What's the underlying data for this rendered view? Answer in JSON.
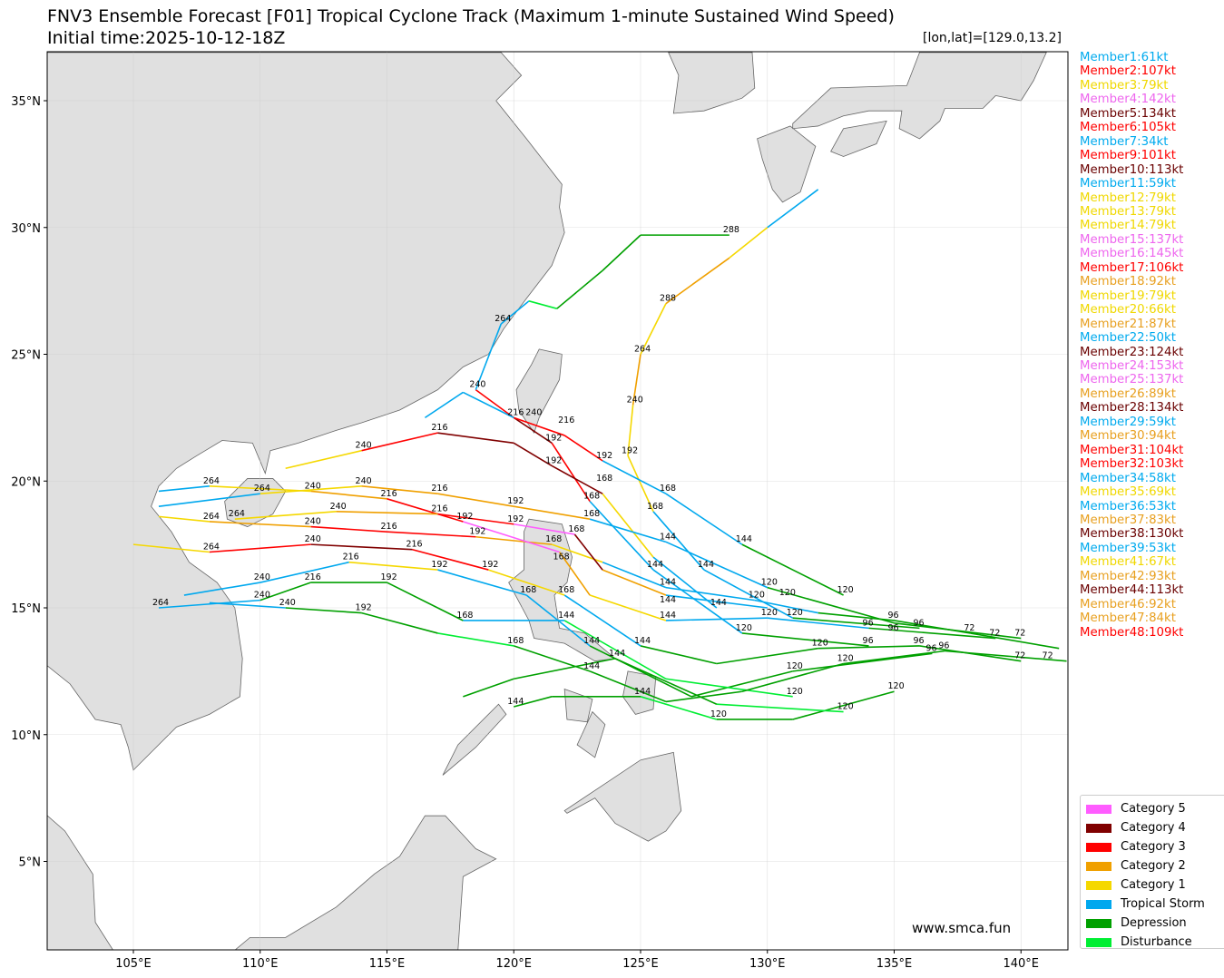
{
  "title": "FNV3 Ensemble Forecast [F01] Tropical Cyclone Track (Maximum 1-minute Sustained Wind Speed)",
  "subtitle": "Initial time:2025-10-12-18Z",
  "coord_readout": "[lon,lat]=[129.0,13.2]",
  "watermark": "www.smca.fun",
  "members": [
    {
      "label": "Member1:61kt",
      "cat": "TS"
    },
    {
      "label": "Member2:107kt",
      "cat": "C3"
    },
    {
      "label": "Member3:79kt",
      "cat": "C1"
    },
    {
      "label": "Member4:142kt",
      "cat": "C5"
    },
    {
      "label": "Member5:134kt",
      "cat": "C4"
    },
    {
      "label": "Member6:105kt",
      "cat": "C3"
    },
    {
      "label": "Member7:34kt",
      "cat": "TS"
    },
    {
      "label": "Member9:101kt",
      "cat": "C3"
    },
    {
      "label": "Member10:113kt",
      "cat": "C4"
    },
    {
      "label": "Member11:59kt",
      "cat": "TS"
    },
    {
      "label": "Member12:79kt",
      "cat": "C1"
    },
    {
      "label": "Member13:79kt",
      "cat": "C1"
    },
    {
      "label": "Member14:79kt",
      "cat": "C1"
    },
    {
      "label": "Member15:137kt",
      "cat": "C5"
    },
    {
      "label": "Member16:145kt",
      "cat": "C5"
    },
    {
      "label": "Member17:106kt",
      "cat": "C3"
    },
    {
      "label": "Member18:92kt",
      "cat": "C2"
    },
    {
      "label": "Member19:79kt",
      "cat": "C1"
    },
    {
      "label": "Member20:66kt",
      "cat": "C1"
    },
    {
      "label": "Member21:87kt",
      "cat": "C2"
    },
    {
      "label": "Member22:50kt",
      "cat": "TS"
    },
    {
      "label": "Member23:124kt",
      "cat": "C4"
    },
    {
      "label": "Member24:153kt",
      "cat": "C5"
    },
    {
      "label": "Member25:137kt",
      "cat": "C5"
    },
    {
      "label": "Member26:89kt",
      "cat": "C2"
    },
    {
      "label": "Member28:134kt",
      "cat": "C4"
    },
    {
      "label": "Member29:59kt",
      "cat": "TS"
    },
    {
      "label": "Member30:94kt",
      "cat": "C2"
    },
    {
      "label": "Member31:104kt",
      "cat": "C3"
    },
    {
      "label": "Member32:103kt",
      "cat": "C3"
    },
    {
      "label": "Member34:58kt",
      "cat": "TS"
    },
    {
      "label": "Member35:69kt",
      "cat": "C1"
    },
    {
      "label": "Member36:53kt",
      "cat": "TS"
    },
    {
      "label": "Member37:83kt",
      "cat": "C2"
    },
    {
      "label": "Member38:130kt",
      "cat": "C4"
    },
    {
      "label": "Member39:53kt",
      "cat": "TS"
    },
    {
      "label": "Member41:67kt",
      "cat": "C1"
    },
    {
      "label": "Member42:93kt",
      "cat": "C2"
    },
    {
      "label": "Member44:113kt",
      "cat": "C4"
    },
    {
      "label": "Member46:92kt",
      "cat": "C2"
    },
    {
      "label": "Member47:84kt",
      "cat": "C2"
    },
    {
      "label": "Member48:109kt",
      "cat": "C3"
    }
  ],
  "legend": [
    {
      "key": "C5",
      "label": "Category 5",
      "color": "#ff5cff"
    },
    {
      "key": "C4",
      "label": "Category 4",
      "color": "#800000"
    },
    {
      "key": "C3",
      "label": "Category 3",
      "color": "#ff0000"
    },
    {
      "key": "C2",
      "label": "Category 2",
      "color": "#f0a000"
    },
    {
      "key": "C1",
      "label": "Category 1",
      "color": "#f5d800"
    },
    {
      "key": "TS",
      "label": "Tropical Storm",
      "color": "#00a8ee"
    },
    {
      "key": "D",
      "label": "Depression",
      "color": "#00a000"
    },
    {
      "key": "Ds",
      "label": "Disturbance",
      "color": "#00ee33"
    }
  ],
  "member_text_colors": {
    "C5": "#ee66ee",
    "C4": "#6a0000",
    "C3": "#ff0000",
    "C2": "#e8a020",
    "C1": "#f0d800",
    "TS": "#00aaee"
  },
  "chart_data": {
    "type": "map-tracks",
    "projection": "plate-carree",
    "xlim": [
      101.6,
      141.8
    ],
    "ylim": [
      1.5,
      36.9
    ],
    "grid": true,
    "legend_placement": "bottom-right",
    "xticks": [
      "105°E",
      "110°E",
      "115°E",
      "120°E",
      "125°E",
      "130°E",
      "135°E",
      "140°E"
    ],
    "xtick_values": [
      105,
      110,
      115,
      120,
      125,
      130,
      135,
      140
    ],
    "yticks": [
      "5°N",
      "10°N",
      "15°N",
      "20°N",
      "25°N",
      "30°N",
      "35°N"
    ],
    "ytick_values": [
      5,
      10,
      15,
      20,
      25,
      30,
      35
    ],
    "tracks": [
      [
        [
          141.5,
          13.4,
          "D"
        ],
        [
          138,
          14,
          "D",
          72
        ],
        [
          135,
          14.5,
          "D",
          96
        ],
        [
          132,
          14.8,
          "TS"
        ],
        [
          129.5,
          15.3,
          "TS",
          120
        ],
        [
          126,
          15.8,
          "TS",
          144
        ],
        [
          123.5,
          16.8,
          "C1"
        ],
        [
          121.5,
          17.5,
          "C2",
          168
        ],
        [
          118.5,
          17.8,
          "C3",
          192
        ],
        [
          115,
          18,
          "C3",
          216
        ],
        [
          112,
          18.2,
          "C2",
          240
        ],
        [
          108,
          18.4,
          "C1",
          264
        ],
        [
          106,
          18.6,
          "TS"
        ]
      ],
      [
        [
          140,
          12.9,
          "D",
          72
        ],
        [
          136,
          13.5,
          "D",
          96
        ],
        [
          132,
          13.4,
          "D",
          120
        ],
        [
          128,
          12.8,
          "D"
        ],
        [
          125,
          13.5,
          "TS",
          144
        ],
        [
          122,
          15.5,
          "C1",
          168
        ],
        [
          119,
          16.5,
          "C3",
          192
        ],
        [
          116,
          17.3,
          "C4",
          216
        ],
        [
          112,
          17.5,
          "C3",
          240
        ],
        [
          108,
          17.2,
          "C1",
          264
        ],
        [
          105,
          17.5,
          "TS"
        ]
      ],
      [
        [
          139,
          13.8,
          "D",
          72
        ],
        [
          134,
          14.2,
          "TS",
          96
        ],
        [
          130,
          14.6,
          "TS",
          120
        ],
        [
          126,
          14.5,
          "C1",
          144
        ],
        [
          123,
          15.5,
          "C2"
        ],
        [
          121.8,
          17.2,
          "C5",
          168
        ],
        [
          118,
          18.4,
          "C3",
          192
        ],
        [
          115,
          19.3,
          "C2",
          216
        ],
        [
          112,
          19.6,
          "C1",
          240
        ],
        [
          108,
          19.8,
          "TS",
          264
        ],
        [
          106,
          19.6,
          "TS"
        ]
      ],
      [
        [
          136,
          14.2,
          "D",
          96
        ],
        [
          131,
          14.6,
          "TS",
          120
        ],
        [
          127.5,
          16.5,
          "TS",
          144
        ],
        [
          125.5,
          18.8,
          "C1",
          168
        ],
        [
          124.5,
          21,
          "C1",
          192
        ],
        [
          124.7,
          23,
          "C2",
          240
        ],
        [
          125,
          25,
          "C1",
          264
        ],
        [
          126,
          27,
          "C2",
          288
        ],
        [
          128.5,
          28.8,
          "C1"
        ],
        [
          130,
          30,
          "TS"
        ],
        [
          132,
          31.5,
          "TS"
        ]
      ],
      [
        [
          134,
          13.5,
          "D",
          96
        ],
        [
          129,
          14,
          "TS",
          120
        ],
        [
          125.5,
          16.5,
          "TS",
          144
        ],
        [
          123,
          19.2,
          "C3",
          168
        ],
        [
          121.5,
          21.5,
          "C4",
          192
        ],
        [
          120,
          22.5,
          "C3",
          216
        ],
        [
          118.5,
          23.6,
          "TS",
          240
        ],
        [
          119.5,
          26.2,
          "TS",
          264
        ],
        [
          120.6,
          27.1,
          "Ds"
        ],
        [
          121.7,
          26.8,
          "D"
        ],
        [
          123.5,
          28.3,
          "D"
        ],
        [
          125,
          29.7,
          "D"
        ],
        [
          128.5,
          29.7,
          "D",
          288
        ]
      ],
      [
        [
          136.5,
          13.2,
          "D",
          96
        ],
        [
          131,
          12.5,
          "D",
          120
        ],
        [
          127,
          11.5,
          "D"
        ],
        [
          123,
          13.5,
          "TS",
          144
        ],
        [
          120.5,
          15.5,
          "TS",
          168
        ],
        [
          117,
          16.5,
          "C1",
          192
        ],
        [
          113.5,
          16.8,
          "TS",
          216
        ],
        [
          110,
          16,
          "TS",
          240
        ],
        [
          107,
          15.5,
          "C2"
        ]
      ],
      [
        [
          131,
          11.5,
          "Ds",
          120
        ],
        [
          126,
          12.2,
          "Ds"
        ],
        [
          122,
          14.5,
          "TS",
          144
        ],
        [
          118,
          14.5,
          "D",
          168
        ],
        [
          115,
          16,
          "D",
          192
        ],
        [
          112,
          16,
          "D",
          216
        ],
        [
          110,
          15.3,
          "TS",
          240
        ],
        [
          106,
          15,
          "TS",
          264
        ]
      ],
      [
        [
          133,
          15.5,
          "D",
          120
        ],
        [
          129,
          17.5,
          "TS",
          144
        ],
        [
          126,
          19.5,
          "TS",
          168
        ],
        [
          123.5,
          20.8,
          "C3",
          192
        ],
        [
          122,
          21.8,
          "C3",
          216
        ],
        [
          120,
          22.5,
          "TS",
          240
        ],
        [
          118,
          23.5,
          "TS"
        ],
        [
          116.5,
          22.5,
          "D"
        ]
      ],
      [
        [
          128,
          15,
          "TS",
          144
        ],
        [
          125.5,
          17,
          "C1"
        ],
        [
          123.5,
          19.5,
          "C4",
          168
        ],
        [
          121.5,
          20.6,
          "C4",
          192
        ],
        [
          120,
          21.5,
          "C4"
        ],
        [
          117,
          21.9,
          "C3",
          216
        ],
        [
          114,
          21.2,
          "C1",
          240
        ],
        [
          111,
          20.5,
          "TS"
        ]
      ],
      [
        [
          140,
          13.8,
          "D",
          72
        ],
        [
          135,
          14.4,
          "D",
          96
        ],
        [
          130,
          15.8,
          "TS",
          120
        ],
        [
          126,
          17.6,
          "TS",
          144
        ],
        [
          123,
          18.5,
          "C2",
          168
        ],
        [
          120,
          19,
          "C2",
          192
        ],
        [
          117,
          19.5,
          "C2",
          216
        ],
        [
          114,
          19.8,
          "C1",
          240
        ],
        [
          110,
          19.5,
          "TS",
          264
        ],
        [
          106,
          19,
          "TS"
        ]
      ],
      [
        [
          141.8,
          12.9,
          "D",
          72
        ],
        [
          137,
          13.3,
          "D",
          96
        ],
        [
          133,
          12.8,
          "D",
          120
        ],
        [
          129,
          11.7,
          "D"
        ],
        [
          126,
          11.3,
          "D"
        ],
        [
          123,
          12.5,
          "D",
          144
        ],
        [
          120,
          13.5,
          "Ds",
          168
        ],
        [
          117,
          14,
          "D"
        ],
        [
          114,
          14.8,
          "D",
          192
        ],
        [
          111,
          15,
          "TS",
          240
        ],
        [
          108,
          15.2,
          "C2"
        ]
      ],
      [
        [
          135,
          11.7,
          "D",
          120
        ],
        [
          131,
          10.6,
          "D"
        ],
        [
          128,
          10.6,
          "Ds",
          120
        ],
        [
          125,
          11.5,
          "D",
          144
        ],
        [
          121.5,
          11.5,
          "D"
        ],
        [
          120,
          11.1,
          "D",
          144
        ]
      ],
      [
        [
          133,
          10.9,
          "Ds",
          120
        ],
        [
          128,
          11.2,
          "D"
        ],
        [
          124,
          13,
          "D",
          144
        ],
        [
          120,
          12.2,
          "D"
        ],
        [
          118,
          11.5,
          "D"
        ]
      ],
      [
        [
          130,
          15,
          "TS",
          120
        ],
        [
          126,
          15.5,
          "C2",
          144
        ],
        [
          123.5,
          16.5,
          "C4"
        ],
        [
          122.4,
          17.9,
          "C5",
          168
        ],
        [
          120,
          18.3,
          "C3",
          192
        ],
        [
          117,
          18.7,
          "C2",
          216
        ],
        [
          113,
          18.8,
          "C1",
          240
        ],
        [
          109,
          18.5,
          "TS",
          264
        ]
      ]
    ]
  }
}
